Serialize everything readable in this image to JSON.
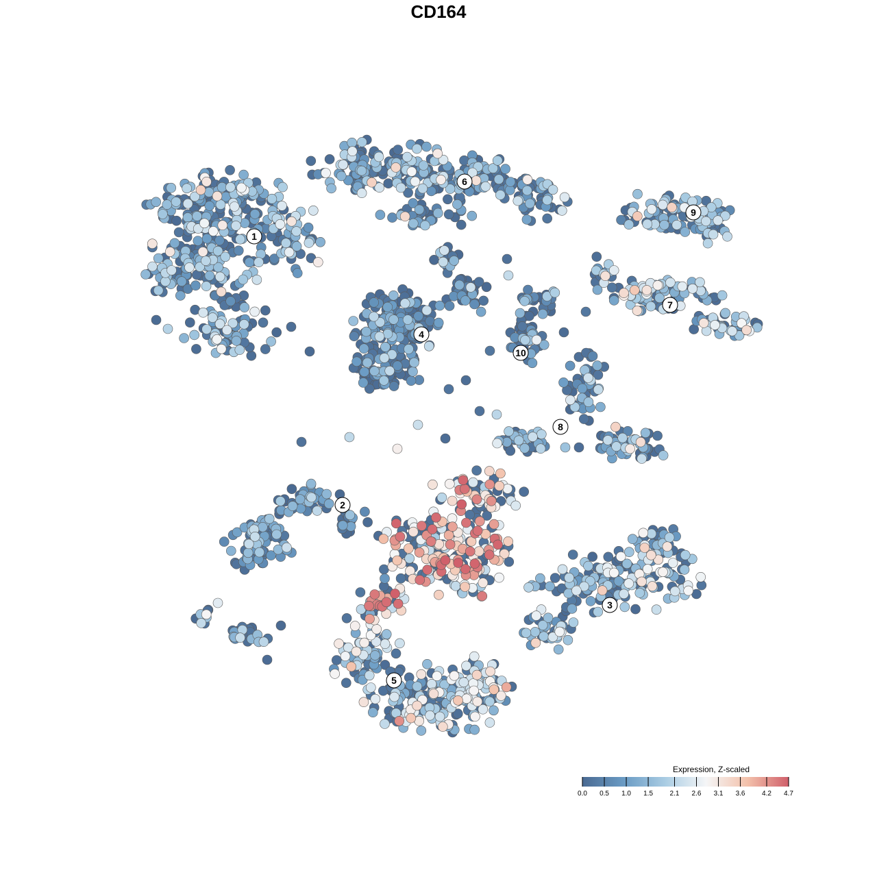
{
  "chart_data": {
    "type": "scatter",
    "title": "CD164",
    "xlabel": "",
    "ylabel": "",
    "grid": false,
    "legend_position": "bottom-right",
    "legend": {
      "title": "Expression, Z-scaled",
      "breaks": [
        0.0,
        0.5,
        1.0,
        1.5,
        2.1,
        2.6,
        3.1,
        3.6,
        4.2,
        4.7
      ],
      "break_labels": [
        "0.0",
        "0.5",
        "1.0",
        "1.5",
        "2.1",
        "2.6",
        "3.1",
        "3.6",
        "4.2",
        "4.7"
      ],
      "range": [
        0.0,
        4.7
      ],
      "colors": [
        "#4a6a92",
        "#6a9bc4",
        "#a9cce3",
        "#f5f6f7",
        "#f3c1ab",
        "#d0606b"
      ]
    },
    "clusters": [
      {
        "label": "1",
        "mean_expression": 1.4
      },
      {
        "label": "2",
        "mean_expression": 1.0
      },
      {
        "label": "3",
        "mean_expression": 1.7
      },
      {
        "label": "4",
        "mean_expression": 0.6
      },
      {
        "label": "5",
        "mean_expression": 2.0
      },
      {
        "label": "6",
        "mean_expression": 1.3
      },
      {
        "label": "7",
        "mean_expression": 1.8
      },
      {
        "label": "8",
        "mean_expression": 1.1
      },
      {
        "label": "9",
        "mean_expression": 1.6
      },
      {
        "label": "10",
        "mean_expression": 0.9
      }
    ]
  }
}
